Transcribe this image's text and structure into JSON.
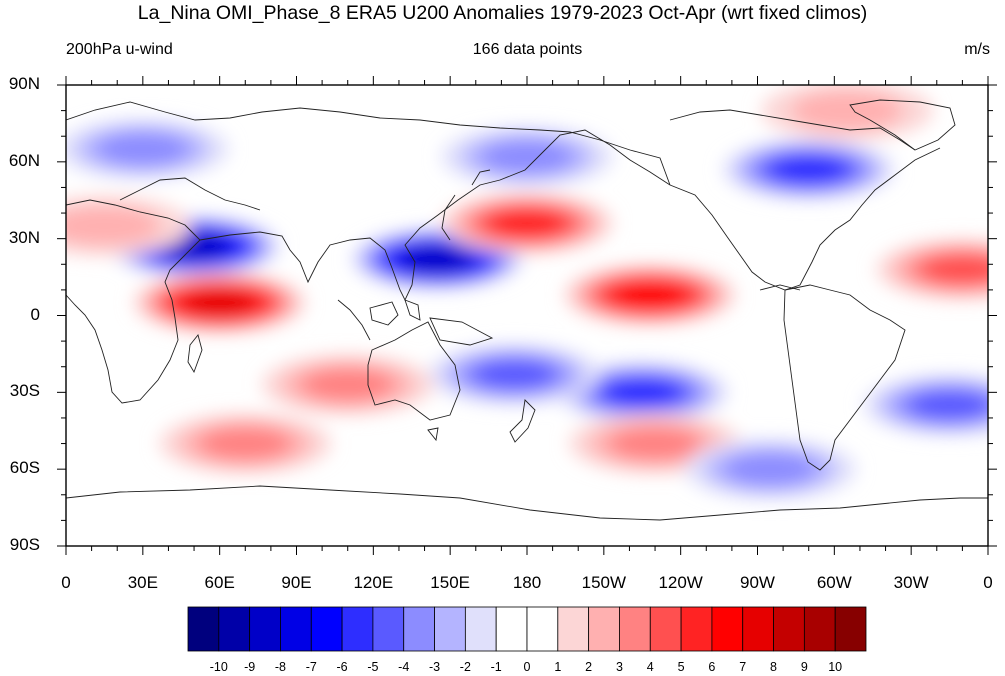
{
  "title": "La_Nina OMI_Phase_8 ERA5 U200 Anomalies 1979-2023 Oct-Apr (wrt fixed climos)",
  "subtitle_left": "200hPa u-wind",
  "subtitle_center": "166 data points",
  "subtitle_right": "m/s",
  "lat_labels": [
    "90N",
    "60N",
    "30N",
    "0",
    "30S",
    "60S",
    "90S"
  ],
  "lon_labels": [
    "0",
    "30E",
    "60E",
    "90E",
    "120E",
    "150E",
    "180",
    "150W",
    "120W",
    "90W",
    "60W",
    "30W",
    "0"
  ],
  "colorbar": {
    "labels": [
      "-10",
      "-9",
      "-8",
      "-7",
      "-6",
      "-5",
      "-4",
      "-3",
      "-2",
      "-1",
      "0",
      "1",
      "2",
      "3",
      "4",
      "5",
      "6",
      "7",
      "8",
      "9",
      "10"
    ],
    "colors": [
      "#00007e",
      "#0000a8",
      "#0000c8",
      "#0000e6",
      "#0000ff",
      "#2e2eff",
      "#5a5aff",
      "#8c8cff",
      "#b4b4ff",
      "#e0e0fb",
      "#ffffff",
      "#ffffff",
      "#fcd6d6",
      "#ffb0b0",
      "#ff8282",
      "#ff5050",
      "#ff2323",
      "#ff0000",
      "#e60000",
      "#c40000",
      "#a80000",
      "#870000"
    ]
  },
  "map_data": {
    "type": "filled-contour",
    "variable": "200hPa u-wind anomaly",
    "units": "m/s",
    "lon_range": [
      0,
      360
    ],
    "lat_range": [
      -90,
      90
    ],
    "anomalies": [
      {
        "lon": 50,
        "lat": 27,
        "value": -8
      },
      {
        "lon": 60,
        "lat": 5,
        "value": 7
      },
      {
        "lon": 145,
        "lat": 22,
        "value": -8
      },
      {
        "lon": 180,
        "lat": 36,
        "value": 5
      },
      {
        "lon": 228,
        "lat": 8,
        "value": 6
      },
      {
        "lon": 225,
        "lat": -30,
        "value": -5
      },
      {
        "lon": 175,
        "lat": -23,
        "value": -4
      },
      {
        "lon": 290,
        "lat": 57,
        "value": -5
      },
      {
        "lon": 345,
        "lat": -35,
        "value": -4
      },
      {
        "lon": 350,
        "lat": 18,
        "value": 4
      },
      {
        "lon": 30,
        "lat": 65,
        "value": -3
      },
      {
        "lon": 180,
        "lat": 62,
        "value": -3
      },
      {
        "lon": 230,
        "lat": -50,
        "value": 3
      },
      {
        "lon": 275,
        "lat": -60,
        "value": -3
      },
      {
        "lon": 70,
        "lat": -50,
        "value": 3
      },
      {
        "lon": 110,
        "lat": -27,
        "value": 3
      },
      {
        "lon": 15,
        "lat": 35,
        "value": 2
      },
      {
        "lon": 305,
        "lat": 80,
        "value": 2
      }
    ]
  }
}
